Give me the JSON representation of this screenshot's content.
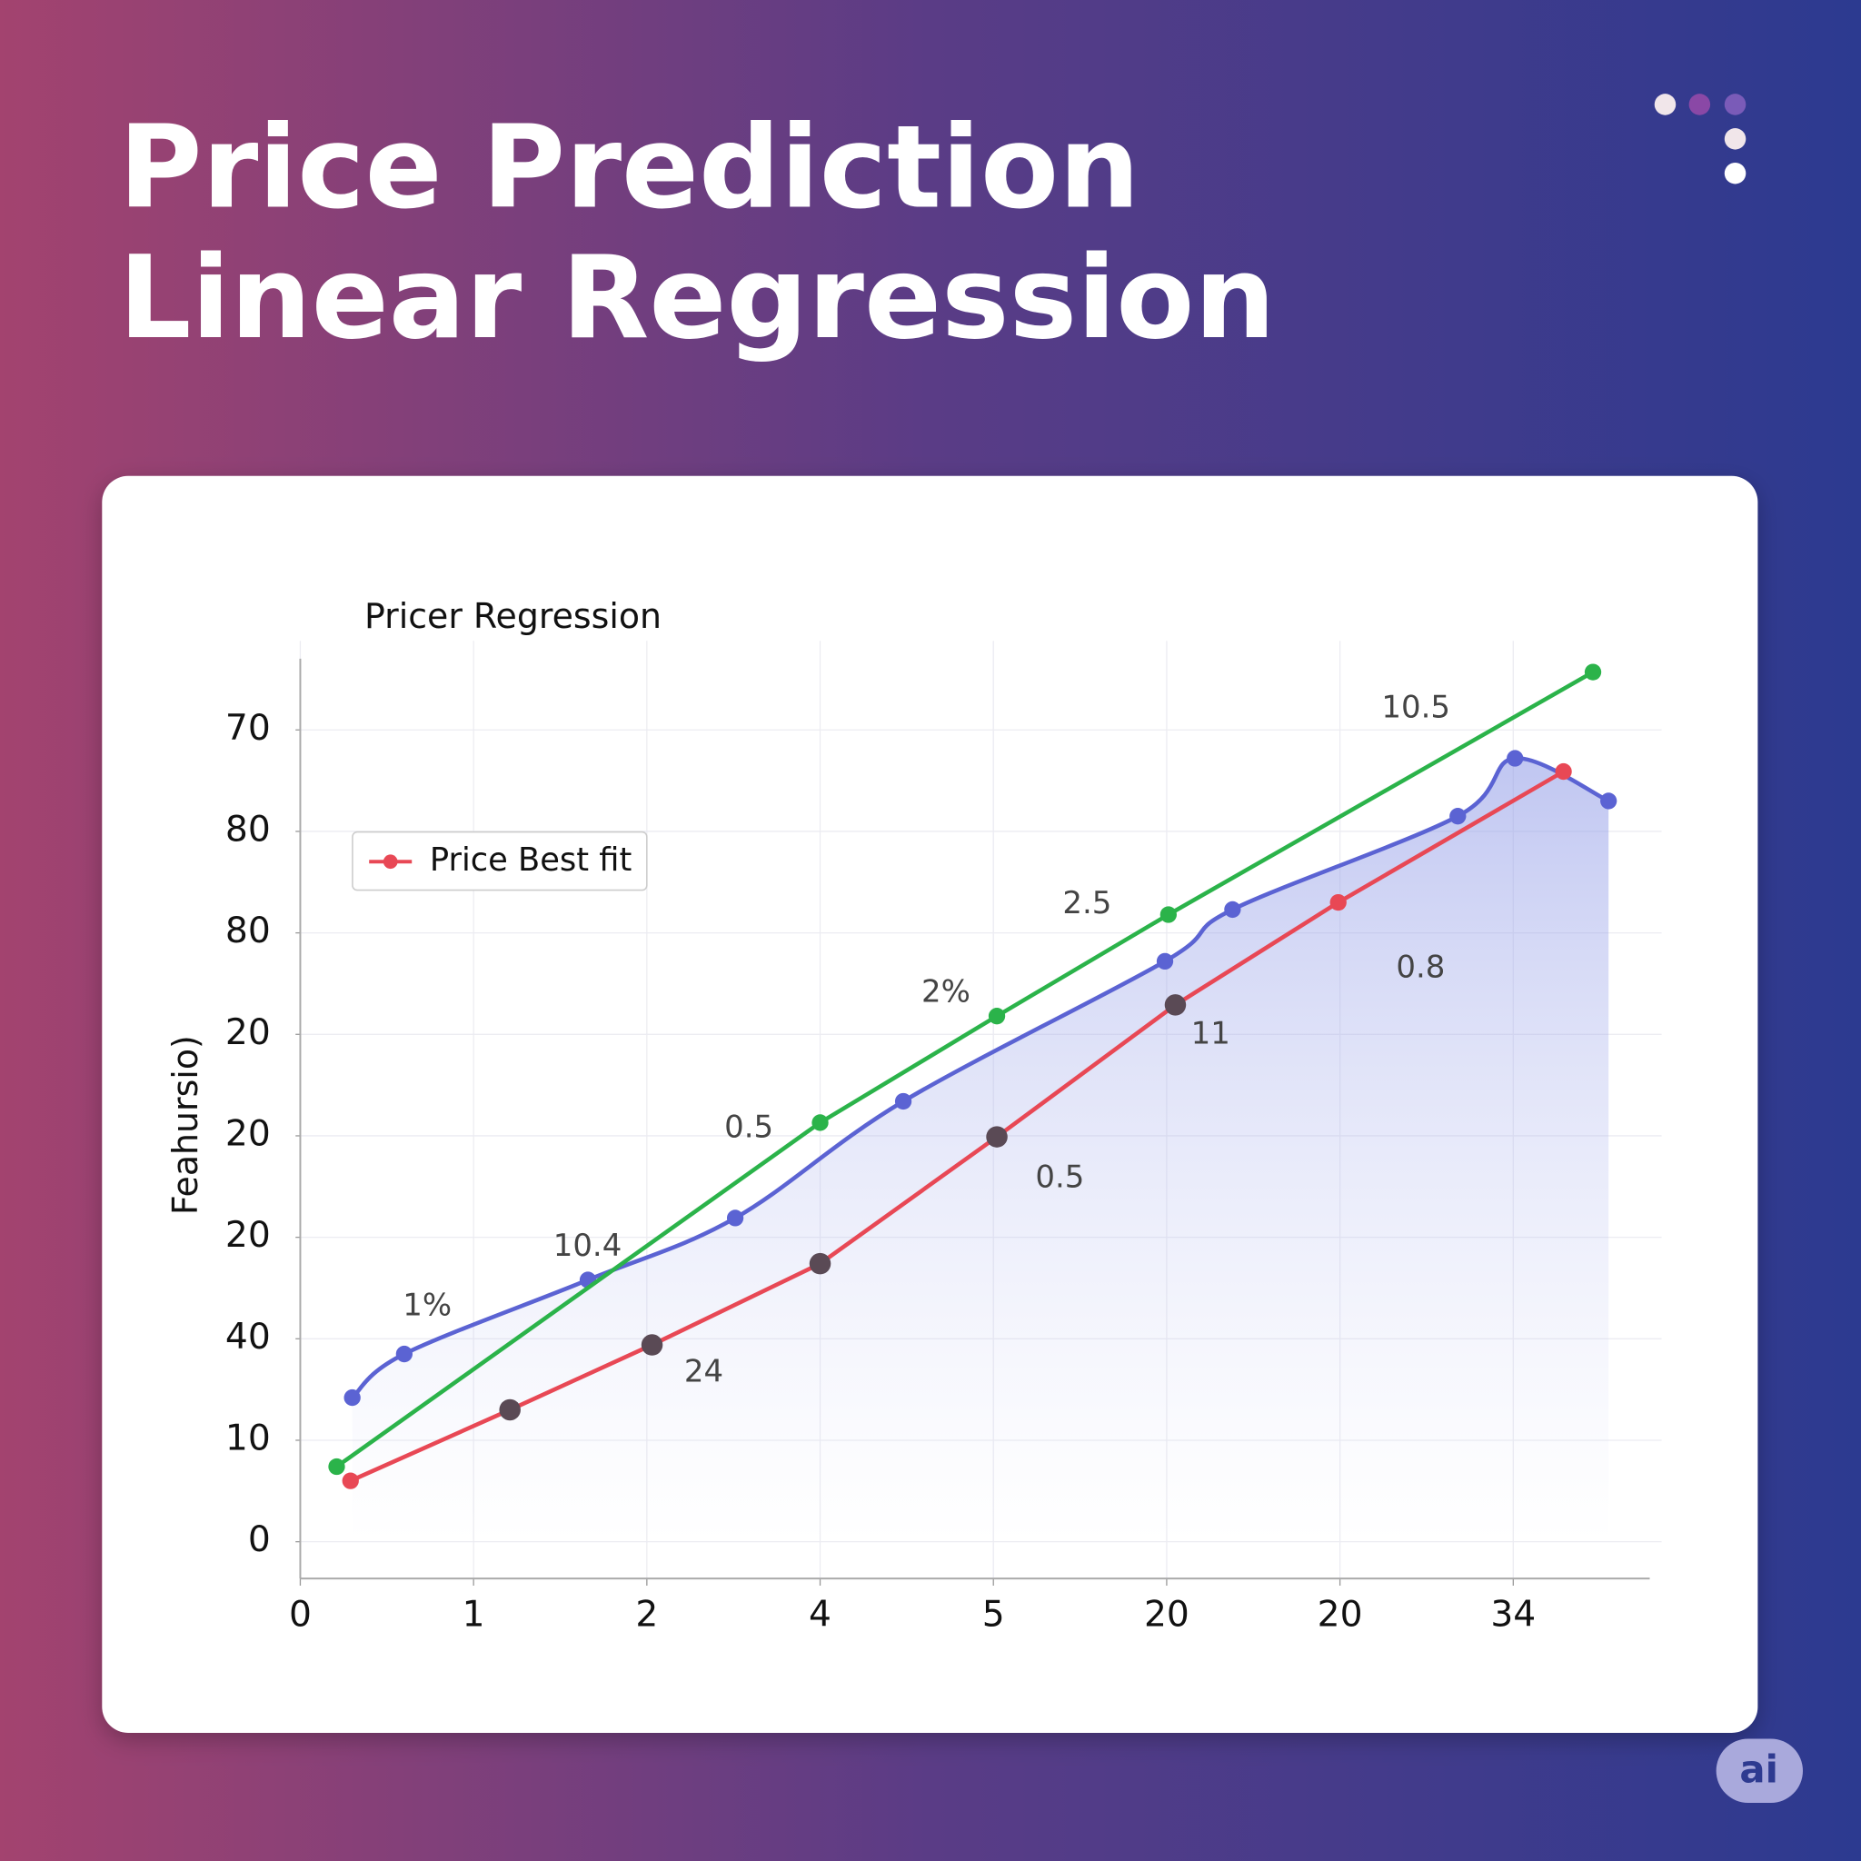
{
  "header": {
    "title": [
      "Price Prediction",
      "Linear Regression"
    ]
  },
  "chart_data": {
    "type": "line",
    "title": "Pricer Regression",
    "y_label": "Feahursio)",
    "xlim": [
      0,
      7.8
    ],
    "xticks": [
      0,
      1,
      2,
      {
        "value": 3,
        "label": "4"
      },
      {
        "value": 4,
        "label": "5"
      },
      {
        "value": 5,
        "label": "20"
      },
      {
        "value": 6,
        "label": "20"
      },
      {
        "value": 7,
        "label": "34"
      }
    ],
    "ylim": [
      0,
      87
    ],
    "yticks": [
      0,
      10,
      {
        "value": 20,
        "label": "40"
      },
      {
        "value": 30,
        "label": "20"
      },
      {
        "value": 40,
        "label": "20"
      },
      {
        "value": 50,
        "label": "20"
      },
      {
        "value": 60,
        "label": "80"
      },
      {
        "value": 70,
        "label": "80"
      },
      {
        "value": 80,
        "label": "70"
      }
    ],
    "grid": true,
    "legend": "upper left",
    "series": [
      {
        "color": "#5b63d3",
        "smooth": true,
        "area": true,
        "x": [
          0.3,
          0.6,
          1.66,
          2.51,
          3.48,
          4.99,
          5.38,
          6.68,
          7.01,
          7.55
        ],
        "values": [
          14.2,
          18.5,
          25.8,
          31.9,
          43.4,
          57.2,
          62.3,
          71.5,
          77.2,
          73.0
        ]
      },
      {
        "color": "#2bb34a",
        "x": [
          0.21,
          3.0,
          4.02,
          5.01,
          7.46
        ],
        "values": [
          7.4,
          41.3,
          51.8,
          61.8,
          85.7
        ]
      },
      {
        "name": "Price Best fit",
        "color": "#e84855",
        "point_colors": [
          "#e84855",
          "#5a4a55",
          "#5a4a55",
          "#5a4a55",
          "#5a4a55",
          "#5a4a55",
          "#e84855",
          "#e84855"
        ],
        "x": [
          0.29,
          1.21,
          2.03,
          3.0,
          4.02,
          5.05,
          5.99,
          7.29
        ],
        "values": [
          6.0,
          13.0,
          19.4,
          27.4,
          39.9,
          52.9,
          63.0,
          75.9
        ]
      }
    ],
    "annotations": [
      "10.5",
      "2.5",
      "0.8",
      "2%",
      "11",
      "0.5",
      "0.5",
      "10.4",
      "1%",
      "24"
    ]
  },
  "badge": "ai"
}
